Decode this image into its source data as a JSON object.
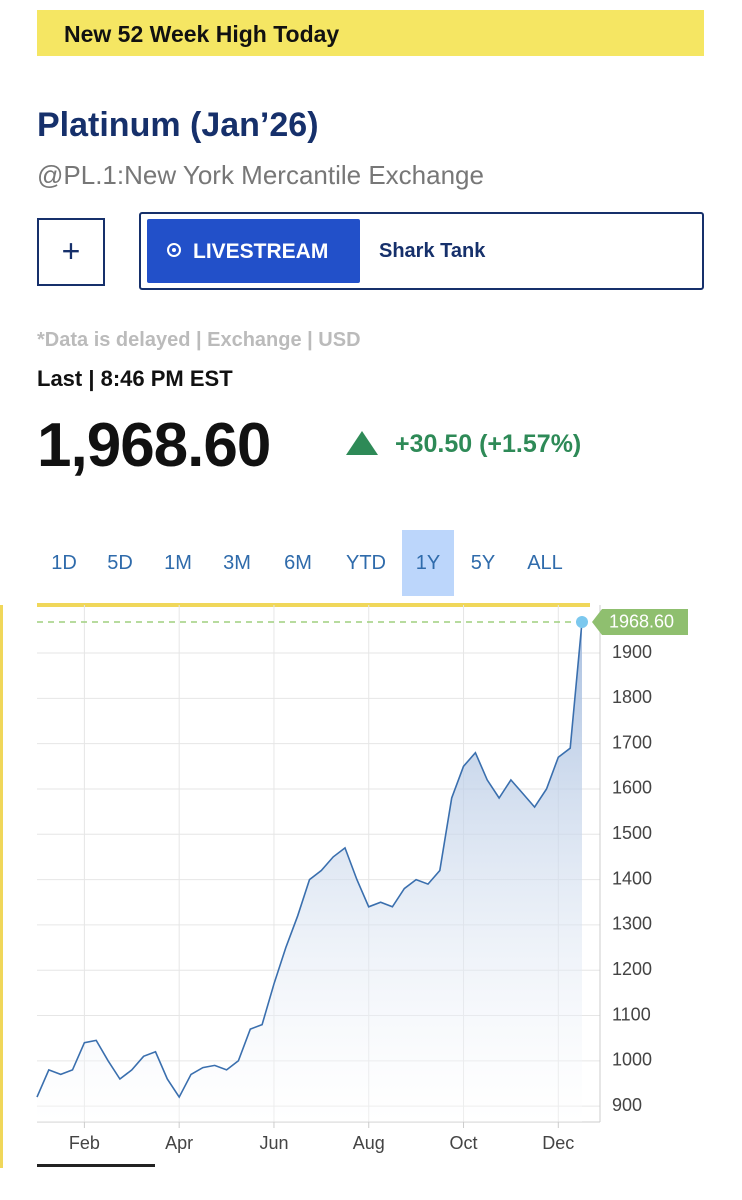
{
  "banner": "New 52 Week High Today",
  "header": {
    "title": "Platinum (Jan’26)",
    "subtitle": "@PL.1:New York Mercantile Exchange"
  },
  "buttons": {
    "add": "+",
    "livestream": "LIVESTREAM",
    "show": "Shark Tank"
  },
  "quote": {
    "note": "*Data is delayed | Exchange | USD",
    "last": "Last | 8:46 PM EST",
    "price": "1,968.60",
    "change": "+30.50 (+1.57%)"
  },
  "tabs": [
    "1D",
    "5D",
    "1M",
    "3M",
    "6M",
    "YTD",
    "1Y",
    "5Y",
    "ALL"
  ],
  "active_tab": "1Y",
  "chart_data": {
    "type": "area",
    "color": "#3a6fae",
    "grid": true,
    "categories": [
      null,
      null,
      null,
      null,
      "Feb",
      null,
      null,
      null,
      null,
      null,
      null,
      null,
      "Apr",
      null,
      null,
      null,
      null,
      null,
      null,
      null,
      "Jun",
      null,
      null,
      null,
      null,
      null,
      null,
      null,
      "Aug",
      null,
      null,
      null,
      null,
      null,
      null,
      null,
      "Oct",
      null,
      null,
      null,
      null,
      null,
      null,
      null,
      "Dec",
      null,
      null
    ],
    "values": [
      920,
      980,
      970,
      980,
      1040,
      1045,
      1000,
      960,
      980,
      1010,
      1020,
      960,
      920,
      970,
      985,
      990,
      980,
      1000,
      1070,
      1080,
      1170,
      1250,
      1320,
      1400,
      1420,
      1450,
      1470,
      1400,
      1340,
      1350,
      1340,
      1380,
      1400,
      1390,
      1420,
      1580,
      1650,
      1680,
      1620,
      1580,
      1620,
      1590,
      1560,
      1600,
      1670,
      1690,
      1968.6
    ],
    "value_labels": [
      null,
      null,
      null,
      null,
      null,
      null,
      null,
      null,
      null,
      null,
      null,
      null,
      null,
      null,
      null,
      null,
      null,
      null,
      null,
      null,
      null,
      null,
      null,
      null,
      null,
      null,
      null,
      null,
      null,
      null,
      null,
      null,
      null,
      null,
      null,
      null,
      null,
      null,
      null,
      null,
      null,
      null,
      null,
      null,
      null,
      null,
      "1968.60"
    ],
    "ylim": [
      865,
      2006
    ],
    "yticks": [
      900,
      1000,
      1100,
      1200,
      1300,
      1400,
      1500,
      1600,
      1700,
      1800,
      1900
    ]
  }
}
